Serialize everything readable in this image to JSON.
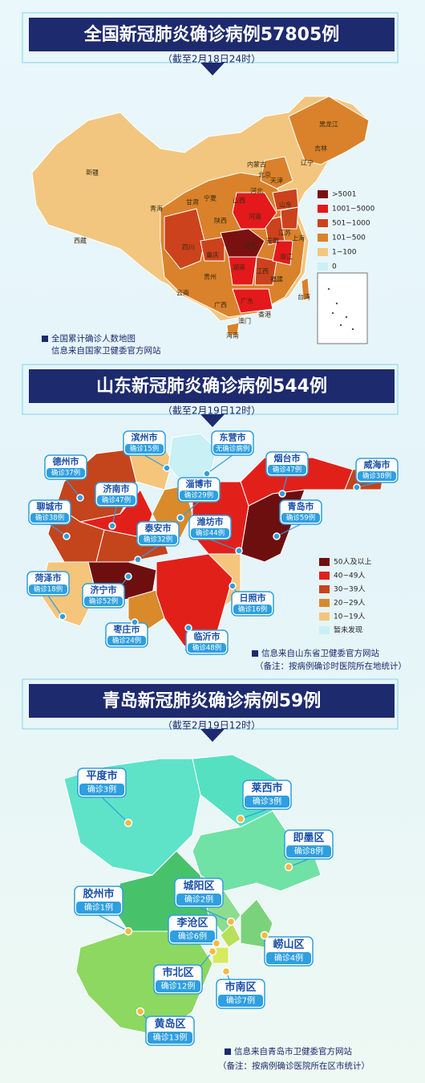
{
  "national": {
    "title": "全国新冠肺炎确诊病例57805例",
    "subtitle": "（截至2月18日24时）",
    "legend": [
      {
        "label": ">5001",
        "color": "#7b1010"
      },
      {
        "label": "1001~5000",
        "color": "#e3191b"
      },
      {
        "label": "501~1000",
        "color": "#cc421d"
      },
      {
        "label": "101~500",
        "color": "#d9822b"
      },
      {
        "label": "1~100",
        "color": "#f3c67f"
      },
      {
        "label": "0",
        "color": "#c9f0f6"
      }
    ],
    "regions": [
      "黑龙江",
      "吉林",
      "辽宁",
      "内蒙古",
      "新疆",
      "西藏",
      "青海",
      "甘肃",
      "宁夏",
      "陕西",
      "山西",
      "河北",
      "北京",
      "天津",
      "山东",
      "河南",
      "江苏",
      "安徽",
      "上海",
      "湖北",
      "浙江",
      "重庆",
      "四川",
      "湖南",
      "江西",
      "福建",
      "贵州",
      "云南",
      "广西",
      "广东",
      "台湾",
      "香港",
      "澳门",
      "海南"
    ],
    "note": [
      "全国累计确诊人数地图",
      "信息来自国家卫健委官方网站"
    ]
  },
  "shandong": {
    "title": "山东新冠肺炎确诊病例544例",
    "subtitle": "（截至2月19日12时）",
    "cities": [
      {
        "name": "滨州市",
        "cases": "确诊15例"
      },
      {
        "name": "东营市",
        "cases": "无确诊病例"
      },
      {
        "name": "德州市",
        "cases": "确诊37例"
      },
      {
        "name": "烟台市",
        "cases": "确诊47例"
      },
      {
        "name": "威海市",
        "cases": "确诊38例"
      },
      {
        "name": "济南市",
        "cases": "确诊47例"
      },
      {
        "name": "淄博市",
        "cases": "确诊29例"
      },
      {
        "name": "青岛市",
        "cases": "确诊59例"
      },
      {
        "name": "聊城市",
        "cases": "确诊38例"
      },
      {
        "name": "泰安市",
        "cases": "确诊32例"
      },
      {
        "name": "潍坊市",
        "cases": "确诊44例"
      },
      {
        "name": "菏泽市",
        "cases": "确诊18例"
      },
      {
        "name": "济宁市",
        "cases": "确诊52例"
      },
      {
        "name": "日照市",
        "cases": "确诊16例"
      },
      {
        "name": "枣庄市",
        "cases": "确诊24例"
      },
      {
        "name": "临沂市",
        "cases": "确诊48例"
      }
    ],
    "legend": [
      {
        "label": "50人及以上",
        "color": "#6e0f0f"
      },
      {
        "label": "40~49人",
        "color": "#e2201a"
      },
      {
        "label": "30~39人",
        "color": "#c4441c"
      },
      {
        "label": "20~29人",
        "color": "#d98a2b"
      },
      {
        "label": "10~19人",
        "color": "#f5c57c"
      },
      {
        "label": "暂未发现",
        "color": "#c8f0f5"
      }
    ],
    "note": [
      "信息来自山东省卫健委官方网站",
      "（备注：按病例确诊时医院所在地统计）"
    ]
  },
  "qingdao": {
    "title": "青岛新冠肺炎确诊病例59例",
    "subtitle": "（截至2月19日12时）",
    "districts": [
      {
        "name": "平度市",
        "cases": "确诊3例"
      },
      {
        "name": "莱西市",
        "cases": "确诊3例"
      },
      {
        "name": "即墨区",
        "cases": "确诊8例"
      },
      {
        "name": "胶州市",
        "cases": "确诊1例"
      },
      {
        "name": "城阳区",
        "cases": "确诊2例"
      },
      {
        "name": "李沧区",
        "cases": "确诊6例"
      },
      {
        "name": "崂山区",
        "cases": "确诊4例"
      },
      {
        "name": "市北区",
        "cases": "确诊12例"
      },
      {
        "name": "市南区",
        "cases": "确诊7例"
      },
      {
        "name": "黄岛区",
        "cases": "确诊13例"
      }
    ],
    "note": [
      "信息来自青岛市卫健委官方网站",
      "（备注：按病例确诊医院所在区市统计）"
    ]
  }
}
